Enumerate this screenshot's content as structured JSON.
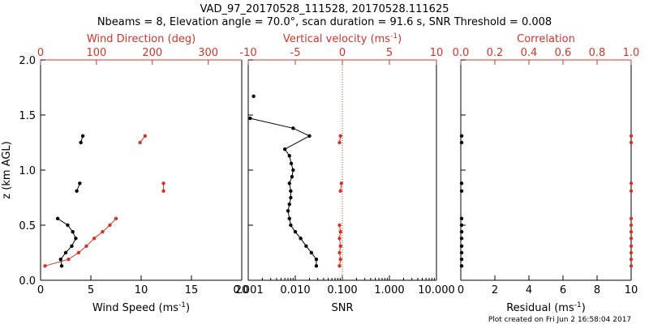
{
  "header": {
    "title": "VAD_97_20170528_111528, 20170528.111625",
    "subtitle": "Nbeams = 8, Elevation angle = 70.0°, scan duration = 91.6 s, SNR Threshold = 0.008"
  },
  "footer": {
    "note": "Plot created on Fri Jun  2 16:58:04 2017"
  },
  "colors": {
    "black": "#000000",
    "red": "#d0352b"
  },
  "chart_data": [
    {
      "type": "line",
      "panel": "wind",
      "ylabel": "z (km AGL)",
      "ylim": [
        0,
        2
      ],
      "yticks": [
        0.0,
        0.5,
        1.0,
        1.5,
        2.0
      ],
      "ytick_labels": [
        "0.0",
        "0.5",
        "1.0",
        "1.5",
        "2.0"
      ],
      "bottom_axis": {
        "label": "Wind Speed (ms",
        "label_sup": "-1",
        "label_end": ")",
        "range": [
          0,
          20
        ],
        "ticks": [
          0,
          5,
          10,
          15,
          20
        ]
      },
      "top_axis": {
        "label": "Wind Direction (deg)",
        "range": [
          0,
          360
        ],
        "ticks": [
          0,
          100,
          200,
          300
        ]
      },
      "series": [
        {
          "axis": "bottom",
          "color": "black",
          "segments": [
            [
              [
                2.1,
                0.13
              ],
              [
                2.0,
                0.19
              ],
              [
                2.5,
                0.25
              ],
              [
                3.1,
                0.31
              ],
              [
                3.5,
                0.38
              ],
              [
                3.2,
                0.44
              ],
              [
                2.7,
                0.5
              ],
              [
                1.7,
                0.56
              ]
            ],
            [
              [
                3.6,
                0.81
              ],
              [
                3.9,
                0.88
              ]
            ],
            [
              [
                4.0,
                1.25
              ],
              [
                4.2,
                1.31
              ]
            ]
          ]
        },
        {
          "axis": "top",
          "color": "red",
          "segments": [
            [
              [
                8,
                0.13
              ],
              [
                50,
                0.19
              ],
              [
                68,
                0.25
              ],
              [
                82,
                0.31
              ],
              [
                96,
                0.38
              ],
              [
                111,
                0.44
              ],
              [
                124,
                0.5
              ],
              [
                135,
                0.56
              ]
            ],
            [
              [
                220,
                0.81
              ],
              [
                220,
                0.88
              ]
            ],
            [
              [
                178,
                1.25
              ],
              [
                187,
                1.31
              ]
            ]
          ]
        }
      ]
    },
    {
      "type": "line",
      "panel": "snr",
      "xscale": "log",
      "ylim": [
        0,
        2
      ],
      "bottom_axis": {
        "label": "SNR",
        "range": [
          0.001,
          10
        ],
        "ticks": [
          0.001,
          0.01,
          0.1,
          1,
          10
        ],
        "tick_labels": [
          "0.001",
          "0.010",
          "0.100",
          "1.000",
          "10.000"
        ]
      },
      "top_axis": {
        "label": "Vertical velocity (ms",
        "label_sup": "-1",
        "label_end": ")",
        "range": [
          -10,
          10
        ],
        "ticks": [
          -10,
          -5,
          0,
          5,
          10
        ]
      },
      "series": [
        {
          "axis": "bottom",
          "color": "black",
          "segments": [
            [
              [
                0.028,
                0.13
              ],
              [
                0.028,
                0.19
              ],
              [
                0.022,
                0.25
              ],
              [
                0.017,
                0.31
              ],
              [
                0.013,
                0.38
              ],
              [
                0.01,
                0.44
              ],
              [
                0.008,
                0.5
              ],
              [
                0.0075,
                0.56
              ],
              [
                0.007,
                0.63
              ],
              [
                0.0075,
                0.69
              ],
              [
                0.008,
                0.75
              ],
              [
                0.008,
                0.81
              ],
              [
                0.0075,
                0.88
              ],
              [
                0.0085,
                0.94
              ],
              [
                0.009,
                1.0
              ],
              [
                0.0082,
                1.06
              ],
              [
                0.0075,
                1.13
              ],
              [
                0.006,
                1.19
              ],
              [
                0.02,
                1.31
              ],
              [
                0.009,
                1.38
              ],
              [
                0.0011,
                1.47
              ]
            ]
          ]
        },
        {
          "axis": "top",
          "color": "red",
          "segments": [
            [
              [
                -0.3,
                0.13
              ],
              [
                -0.2,
                0.19
              ],
              [
                -0.3,
                0.25
              ],
              [
                -0.2,
                0.31
              ],
              [
                -0.3,
                0.38
              ],
              [
                -0.2,
                0.44
              ],
              [
                -0.3,
                0.5
              ]
            ],
            [
              [
                -0.2,
                0.81
              ],
              [
                -0.1,
                0.88
              ]
            ],
            [
              [
                -0.3,
                1.25
              ],
              [
                -0.2,
                1.31
              ]
            ]
          ]
        }
      ],
      "extra_points": [
        [
          0.0013,
          1.67
        ]
      ],
      "reference_line": {
        "axis": "top",
        "x": 0,
        "style": "dotted",
        "color": "red"
      }
    },
    {
      "type": "scatter",
      "panel": "residual",
      "ylim": [
        0,
        2
      ],
      "bottom_axis": {
        "label": "Residual (ms",
        "label_sup": "-1",
        "label_end": ")",
        "range": [
          0,
          10
        ],
        "ticks": [
          0,
          2,
          4,
          6,
          8,
          10
        ]
      },
      "top_axis": {
        "label": "Correlation",
        "range": [
          0,
          1
        ],
        "ticks": [
          0,
          0.2,
          0.4,
          0.6,
          0.8,
          1
        ],
        "tick_labels": [
          "0.0",
          "0.2",
          "0.4",
          "0.6",
          "0.8",
          "1.0"
        ]
      },
      "series": [
        {
          "axis": "bottom",
          "color": "black",
          "x": [
            0.05,
            0.05,
            0.05,
            0.05,
            0.05,
            0.05,
            0.05,
            0.05,
            0.05,
            0.05,
            0.05,
            0.05
          ],
          "y": [
            0.13,
            0.19,
            0.25,
            0.31,
            0.38,
            0.44,
            0.5,
            0.56,
            0.81,
            0.88,
            1.25,
            1.31
          ]
        },
        {
          "axis": "top",
          "color": "red",
          "x": [
            1,
            1,
            1,
            1,
            1,
            1,
            1,
            1,
            1,
            1,
            1,
            1
          ],
          "y": [
            0.13,
            0.19,
            0.25,
            0.31,
            0.38,
            0.44,
            0.5,
            0.56,
            0.81,
            0.88,
            1.25,
            1.31
          ]
        }
      ]
    }
  ]
}
